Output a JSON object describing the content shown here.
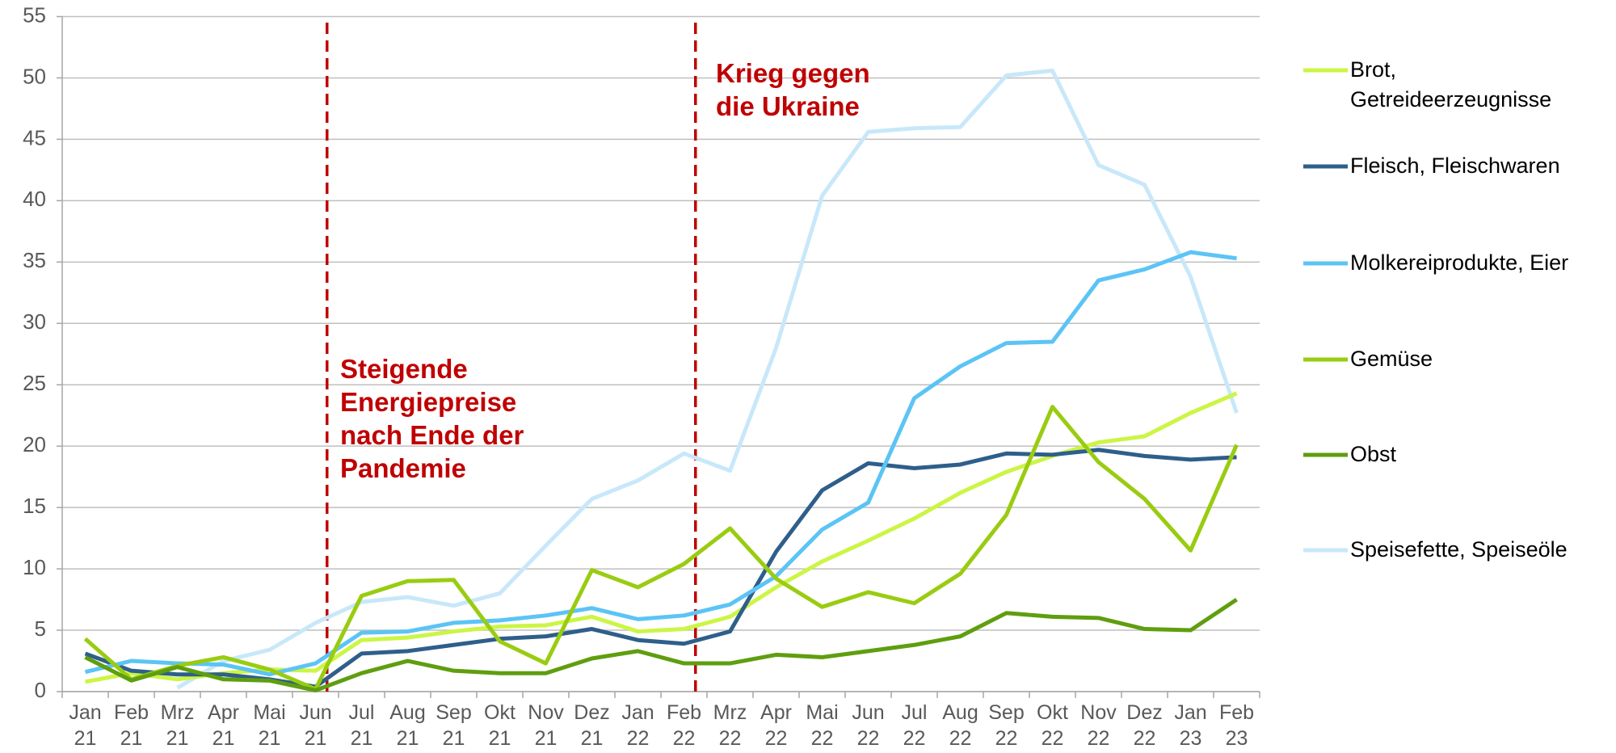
{
  "chart_data": {
    "type": "line",
    "categories": [
      "Jan 21",
      "Feb 21",
      "Mrz 21",
      "Apr 21",
      "Mai 21",
      "Jun 21",
      "Jul 21",
      "Aug 21",
      "Sep 21",
      "Okt 21",
      "Nov 21",
      "Dez 21",
      "Jan 22",
      "Feb 22",
      "Mrz 22",
      "Apr 22",
      "Mai 22",
      "Jun 22",
      "Jul 22",
      "Aug 22",
      "Sep 22",
      "Okt 22",
      "Nov 22",
      "Dez 22",
      "Jan 23",
      "Feb 23"
    ],
    "series": [
      {
        "name": "Brot,\nGetreideerzeugnisse",
        "color": "#ccf545",
        "values": [
          0.8,
          1.5,
          1.0,
          1.5,
          1.8,
          1.7,
          4.2,
          4.4,
          4.9,
          5.3,
          5.4,
          6.1,
          4.9,
          5.1,
          6.1,
          8.5,
          10.6,
          12.3,
          14.1,
          16.2,
          17.9,
          19.2,
          20.3,
          20.8,
          22.7,
          24.3
        ]
      },
      {
        "name": "Fleisch, Fleischwaren",
        "color": "#2e5f8a",
        "values": [
          3.1,
          1.7,
          1.4,
          1.4,
          1.0,
          0.4,
          3.1,
          3.3,
          3.8,
          4.3,
          4.5,
          5.1,
          4.2,
          3.9,
          4.9,
          11.4,
          16.4,
          18.6,
          18.2,
          18.5,
          19.4,
          19.3,
          19.7,
          19.2,
          18.9,
          19.1
        ]
      },
      {
        "name": "Molkereiprodukte, Eier",
        "color": "#5bc4f5",
        "values": [
          1.6,
          2.5,
          2.3,
          2.2,
          1.4,
          2.3,
          4.8,
          4.9,
          5.6,
          5.8,
          6.2,
          6.8,
          5.9,
          6.2,
          7.1,
          9.4,
          13.2,
          15.4,
          23.9,
          26.5,
          28.4,
          28.5,
          33.5,
          34.4,
          35.8,
          35.3
        ]
      },
      {
        "name": "Gemüse",
        "color": "#99cc11",
        "values": [
          4.3,
          1.0,
          2.1,
          2.8,
          1.8,
          0.2,
          7.8,
          9.0,
          9.1,
          4.1,
          2.3,
          9.9,
          8.5,
          10.4,
          13.3,
          9.2,
          6.9,
          8.1,
          7.2,
          9.6,
          14.4,
          23.2,
          18.7,
          15.7,
          11.5,
          20.1
        ]
      },
      {
        "name": "Obst",
        "color": "#5f9e0f",
        "values": [
          2.8,
          0.9,
          2.0,
          1.0,
          0.9,
          0.1,
          1.5,
          2.5,
          1.7,
          1.5,
          1.5,
          2.7,
          3.3,
          2.3,
          2.3,
          3.0,
          2.8,
          3.3,
          3.8,
          4.5,
          6.4,
          6.1,
          6.0,
          5.1,
          5.0,
          7.5
        ]
      },
      {
        "name": "Speisefette, Speiseöle",
        "color": "#c8e8fa",
        "values": [
          null,
          null,
          0.3,
          2.5,
          3.4,
          5.6,
          7.3,
          7.7,
          7.0,
          8.0,
          11.9,
          15.7,
          17.2,
          19.4,
          18.0,
          28.0,
          40.4,
          45.6,
          45.9,
          46.0,
          50.2,
          50.6,
          42.9,
          41.3,
          33.8,
          22.7
        ]
      }
    ],
    "ylim": [
      0,
      55
    ],
    "yticks": [
      0,
      5,
      10,
      15,
      20,
      25,
      30,
      35,
      40,
      45,
      50,
      55
    ],
    "grid": true,
    "annotations": [
      {
        "lines": [
          "Steigende",
          "Energiepreise",
          "nach Ende der",
          "Pandemie"
        ]
      },
      {
        "lines": [
          "Krieg gegen",
          "die Ukraine"
        ]
      }
    ]
  }
}
